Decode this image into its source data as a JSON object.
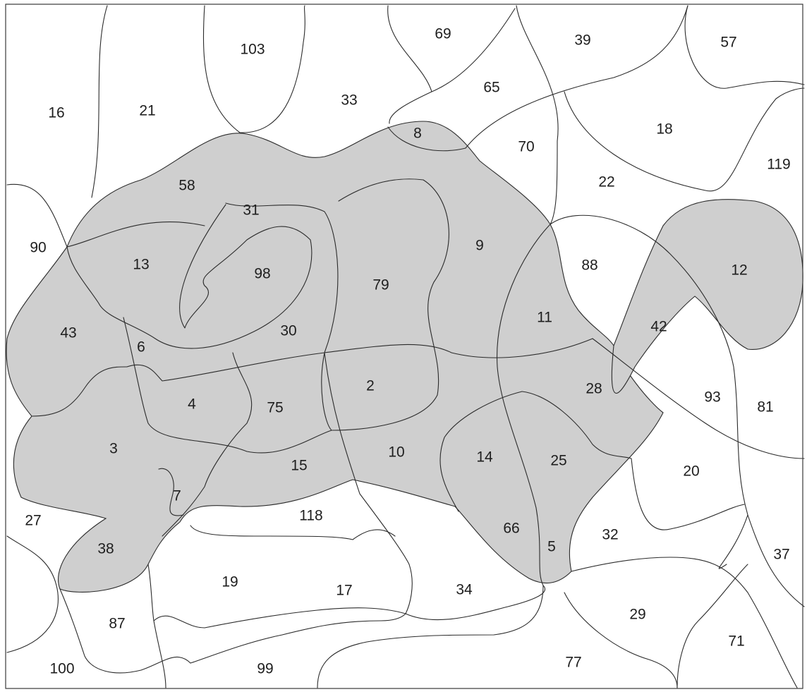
{
  "colors": {
    "paper": "#ffffff",
    "ink": "#2b2b2b",
    "shade": "#cfcfcf"
  },
  "regions": [
    {
      "label": "103",
      "shaded": false
    },
    {
      "label": "69",
      "shaded": false
    },
    {
      "label": "39",
      "shaded": false
    },
    {
      "label": "57",
      "shaded": false
    },
    {
      "label": "65",
      "shaded": false
    },
    {
      "label": "16",
      "shaded": false
    },
    {
      "label": "21",
      "shaded": false
    },
    {
      "label": "33",
      "shaded": false
    },
    {
      "label": "18",
      "shaded": false
    },
    {
      "label": "8",
      "shaded": true
    },
    {
      "label": "70",
      "shaded": false
    },
    {
      "label": "119",
      "shaded": false
    },
    {
      "label": "58",
      "shaded": true
    },
    {
      "label": "22",
      "shaded": false
    },
    {
      "label": "31",
      "shaded": true
    },
    {
      "label": "90",
      "shaded": false
    },
    {
      "label": "9",
      "shaded": true
    },
    {
      "label": "13",
      "shaded": true
    },
    {
      "label": "88",
      "shaded": false
    },
    {
      "label": "12",
      "shaded": true
    },
    {
      "label": "98",
      "shaded": true
    },
    {
      "label": "79",
      "shaded": true
    },
    {
      "label": "11",
      "shaded": true
    },
    {
      "label": "42",
      "shaded": true
    },
    {
      "label": "43",
      "shaded": true
    },
    {
      "label": "30",
      "shaded": true
    },
    {
      "label": "6",
      "shaded": true
    },
    {
      "label": "2",
      "shaded": true
    },
    {
      "label": "28",
      "shaded": true
    },
    {
      "label": "93",
      "shaded": false
    },
    {
      "label": "81",
      "shaded": false
    },
    {
      "label": "4",
      "shaded": true
    },
    {
      "label": "75",
      "shaded": true
    },
    {
      "label": "3",
      "shaded": true
    },
    {
      "label": "10",
      "shaded": true
    },
    {
      "label": "14",
      "shaded": true
    },
    {
      "label": "15",
      "shaded": true
    },
    {
      "label": "25",
      "shaded": true
    },
    {
      "label": "20",
      "shaded": false
    },
    {
      "label": "7",
      "shaded": true
    },
    {
      "label": "27",
      "shaded": false
    },
    {
      "label": "118",
      "shaded": false
    },
    {
      "label": "66",
      "shaded": true
    },
    {
      "label": "32",
      "shaded": false
    },
    {
      "label": "38",
      "shaded": true
    },
    {
      "label": "5",
      "shaded": true
    },
    {
      "label": "37",
      "shaded": false
    },
    {
      "label": "19",
      "shaded": false
    },
    {
      "label": "17",
      "shaded": false
    },
    {
      "label": "34",
      "shaded": false
    },
    {
      "label": "29",
      "shaded": false
    },
    {
      "label": "87",
      "shaded": false
    },
    {
      "label": "71",
      "shaded": false
    },
    {
      "label": "77",
      "shaded": false
    },
    {
      "label": "100",
      "shaded": false
    },
    {
      "label": "99",
      "shaded": false
    }
  ]
}
